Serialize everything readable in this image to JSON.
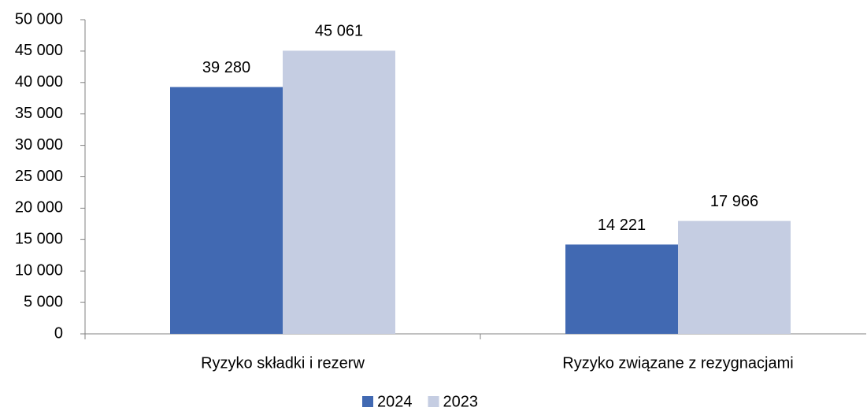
{
  "chart_data": {
    "type": "bar",
    "categories": [
      "Ryzyko składki i rezerw",
      "Ryzyko związane z rezygnacjami"
    ],
    "series": [
      {
        "name": "2024",
        "color": "#4169b2",
        "values": [
          39280,
          14221
        ],
        "value_labels": [
          "39 280",
          "14 221"
        ]
      },
      {
        "name": "2023",
        "color": "#c5cde2",
        "values": [
          45061,
          17966
        ],
        "value_labels": [
          "45 061",
          "17 966"
        ]
      }
    ],
    "ylim": [
      0,
      50000
    ],
    "yticks": [
      0,
      {
        "value": 5000,
        "label": "5 000"
      },
      {
        "value": 10000,
        "label": "10 000"
      },
      {
        "value": 15000,
        "label": "15 000"
      },
      {
        "value": 20000,
        "label": "20 000"
      },
      {
        "value": 25000,
        "label": "25 000"
      },
      {
        "value": 30000,
        "label": "30 000"
      },
      {
        "value": 35000,
        "label": "35 000"
      },
      {
        "value": 40000,
        "label": "40 000"
      },
      {
        "value": 45000,
        "label": "45 000"
      },
      {
        "value": 50000,
        "label": "50 000"
      }
    ],
    "legend": "bottom"
  }
}
